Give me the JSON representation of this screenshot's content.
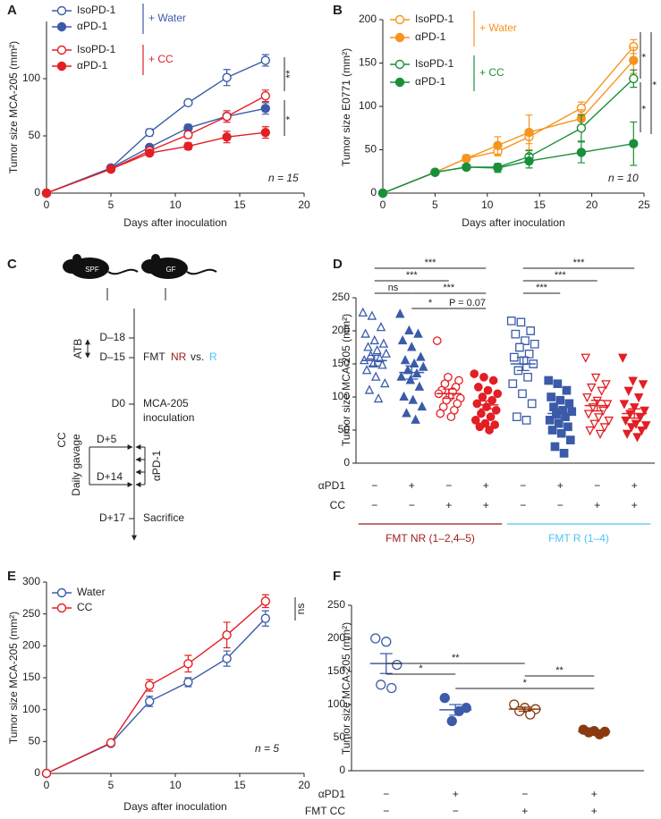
{
  "chart_data": [
    {
      "panel": "A",
      "type": "line",
      "x_label": "Days after inoculation",
      "y_label": "Tumor size MCA-205 (mm²)",
      "x": [
        0,
        5,
        8,
        11,
        14,
        17
      ],
      "xlim": [
        0,
        20
      ],
      "xticks": [
        0,
        5,
        10,
        15,
        20
      ],
      "ylim": [
        0,
        150
      ],
      "yticks": [
        0,
        50,
        100
      ],
      "series": [
        {
          "name": "IsoPD-1",
          "color": "#3b5ba9",
          "marker": "open",
          "values": [
            0,
            22,
            53,
            79,
            101,
            116
          ],
          "errors": [
            0,
            1,
            3,
            2,
            7,
            5
          ]
        },
        {
          "name": "αPD-1",
          "color": "#3b5ba9",
          "marker": "filled",
          "values": [
            0,
            22,
            40,
            57,
            67,
            74
          ],
          "errors": [
            0,
            1,
            2,
            3,
            3,
            5
          ]
        },
        {
          "name": "IsoPD-1",
          "color": "#e31e24",
          "marker": "open",
          "values": [
            0,
            21,
            37,
            51,
            67,
            85
          ],
          "errors": [
            0,
            1,
            2,
            3,
            5,
            5
          ]
        },
        {
          "name": "αPD-1",
          "color": "#e31e24",
          "marker": "filled",
          "values": [
            0,
            21,
            35,
            41,
            49,
            53
          ],
          "errors": [
            0,
            1,
            2,
            3,
            5,
            5
          ]
        }
      ],
      "legend_groups": [
        {
          "label": "+ Water",
          "color": "#3b5ba9"
        },
        {
          "label": "+ CC",
          "color": "#e31e24"
        }
      ],
      "significance": [
        "**",
        "*"
      ],
      "annotation": "n = 15"
    },
    {
      "panel": "B",
      "type": "line",
      "x_label": "Days after inoculation",
      "y_label": "Tumor size E0771 (mm²)",
      "x": [
        0,
        5,
        8,
        11,
        14,
        19,
        24
      ],
      "xlim": [
        0,
        25
      ],
      "xticks": [
        0,
        5,
        10,
        15,
        20,
        25
      ],
      "ylim": [
        0,
        200
      ],
      "yticks": [
        0,
        50,
        100,
        150,
        200
      ],
      "series": [
        {
          "name": "IsoPD-1",
          "color": "#f7941d",
          "marker": "open",
          "values": [
            0,
            24,
            40,
            48,
            65,
            98,
            169
          ],
          "errors": [
            0,
            1,
            3,
            5,
            8,
            7,
            8
          ]
        },
        {
          "name": "αPD-1",
          "color": "#f7941d",
          "marker": "filled",
          "values": [
            0,
            24,
            40,
            55,
            70,
            86,
            153
          ],
          "errors": [
            0,
            1,
            4,
            10,
            20,
            10,
            15
          ]
        },
        {
          "name": "IsoPD-1",
          "color": "#1a8f3a",
          "marker": "open",
          "values": [
            0,
            24,
            30,
            30,
            42,
            75,
            132
          ],
          "errors": [
            0,
            1,
            3,
            4,
            7,
            15,
            10
          ]
        },
        {
          "name": "αPD-1",
          "color": "#1a8f3a",
          "marker": "filled",
          "values": [
            0,
            24,
            30,
            29,
            37,
            47,
            57
          ],
          "errors": [
            0,
            1,
            3,
            5,
            8,
            12,
            25
          ]
        }
      ],
      "legend_groups": [
        {
          "label": "+ Water",
          "color": "#f7941d"
        },
        {
          "label": "+ CC",
          "color": "#1a8f3a"
        }
      ],
      "significance": [
        "*",
        "*",
        "*"
      ],
      "annotation": "n = 10"
    },
    {
      "panel": "D",
      "type": "strip",
      "y_label": "Tumor size MCA-205 (mm²)",
      "ylim": [
        0,
        250
      ],
      "yticks": [
        0,
        50,
        100,
        150,
        200,
        250
      ],
      "groups": [
        {
          "color": "#3b5ba9",
          "marker": "triangle",
          "style": "open",
          "values": [
            227,
            222,
            205,
            195,
            185,
            180,
            175,
            170,
            165,
            162,
            158,
            155,
            150,
            148,
            140,
            130,
            120,
            110,
            97
          ],
          "mean": 155,
          "sem": 8
        },
        {
          "color": "#3b5ba9",
          "marker": "triangle",
          "style": "filled",
          "values": [
            225,
            200,
            195,
            185,
            175,
            160,
            155,
            150,
            145,
            140,
            135,
            130,
            125,
            115,
            100,
            95,
            85,
            75,
            65
          ],
          "mean": 137,
          "sem": 10
        },
        {
          "color": "#e31e24",
          "marker": "circle",
          "style": "open",
          "values": [
            185,
            130,
            125,
            120,
            115,
            110,
            108,
            105,
            100,
            98,
            95,
            90,
            85,
            80,
            75,
            70
          ],
          "mean": 105,
          "sem": 7
        },
        {
          "color": "#e31e24",
          "marker": "circle",
          "style": "filled",
          "values": [
            135,
            130,
            125,
            115,
            110,
            105,
            100,
            95,
            90,
            85,
            80,
            75,
            70,
            65,
            60,
            58,
            55,
            50
          ],
          "mean": 88,
          "sem": 6
        },
        {
          "color": "#3b5ba9",
          "marker": "square",
          "style": "open",
          "values": [
            215,
            213,
            200,
            195,
            185,
            180,
            175,
            165,
            160,
            155,
            150,
            140,
            130,
            120,
            105,
            90,
            70,
            65
          ],
          "mean": 150,
          "sem": 10
        },
        {
          "color": "#3b5ba9",
          "marker": "square",
          "style": "filled",
          "values": [
            125,
            120,
            110,
            100,
            95,
            90,
            85,
            80,
            78,
            75,
            70,
            65,
            60,
            55,
            50,
            45,
            35,
            25,
            15
          ],
          "mean": 75,
          "sem": 7
        },
        {
          "color": "#e31e24",
          "marker": "triangle-down",
          "style": "open",
          "values": [
            160,
            130,
            120,
            115,
            110,
            100,
            95,
            90,
            85,
            80,
            75,
            70,
            65,
            60,
            55,
            50,
            45
          ],
          "mean": 87,
          "sem": 8
        },
        {
          "color": "#e31e24",
          "marker": "triangle-down",
          "style": "filled",
          "values": [
            160,
            125,
            120,
            110,
            100,
            90,
            85,
            80,
            75,
            70,
            65,
            60,
            58,
            55,
            50,
            45,
            40
          ],
          "mean": 75,
          "sem": 7
        }
      ],
      "rows": [
        {
          "label": "αPD1",
          "signs": [
            "−",
            "+",
            "−",
            "+",
            "−",
            "+",
            "−",
            "+"
          ]
        },
        {
          "label": "CC",
          "signs": [
            "−",
            "−",
            "+",
            "+",
            "−",
            "−",
            "+",
            "+"
          ]
        }
      ],
      "comparisons": [
        "***",
        "***",
        "ns",
        "***",
        "*",
        "P = 0.07",
        "***",
        "***",
        "***"
      ],
      "cohorts": [
        {
          "label": "FMT NR (1–2,4–5)",
          "color": "#9b1c1c"
        },
        {
          "label": "FMT R (1–4)",
          "color": "#4fc3f7"
        }
      ]
    },
    {
      "panel": "E",
      "type": "line",
      "x_label": "Days after inoculation",
      "y_label": "Tumor size MCA-205 (mm²)",
      "x": [
        0,
        5,
        8,
        11,
        14,
        17
      ],
      "xlim": [
        0,
        20
      ],
      "xticks": [
        0,
        5,
        10,
        15,
        20
      ],
      "ylim": [
        0,
        300
      ],
      "yticks": [
        0,
        50,
        100,
        150,
        200,
        250,
        300
      ],
      "series": [
        {
          "name": "Water",
          "color": "#3b5ba9",
          "marker": "open",
          "values": [
            0,
            47,
            113,
            143,
            180,
            243
          ],
          "errors": [
            0,
            3,
            8,
            7,
            12,
            12
          ]
        },
        {
          "name": "CC",
          "color": "#e31e24",
          "marker": "open",
          "values": [
            0,
            48,
            138,
            172,
            217,
            270
          ],
          "errors": [
            0,
            3,
            9,
            13,
            20,
            10
          ]
        }
      ],
      "legend_groups": [],
      "significance": [
        "ns"
      ],
      "annotation": "n = 5"
    },
    {
      "panel": "F",
      "type": "strip",
      "y_label": "Tumor size MCA-205 (mm²)",
      "ylim": [
        0,
        250
      ],
      "yticks": [
        0,
        50,
        100,
        150,
        200,
        250
      ],
      "groups": [
        {
          "color": "#3b5ba9",
          "marker": "circle",
          "style": "open",
          "values": [
            200,
            195,
            160,
            130,
            125
          ],
          "mean": 162,
          "sem": 15
        },
        {
          "color": "#3b5ba9",
          "marker": "circle",
          "style": "filled",
          "values": [
            110,
            95,
            90,
            75
          ],
          "mean": 92,
          "sem": 8
        },
        {
          "color": "#8b3a10",
          "marker": "circle",
          "style": "open",
          "values": [
            100,
            95,
            93,
            90,
            85
          ],
          "mean": 93,
          "sem": 3
        },
        {
          "color": "#8b3a10",
          "marker": "circle",
          "style": "filled",
          "values": [
            62,
            60,
            59,
            58,
            55
          ],
          "mean": 59,
          "sem": 2
        }
      ],
      "rows": [
        {
          "label": "αPD1",
          "signs": [
            "−",
            "+",
            "−",
            "+"
          ]
        },
        {
          "label": "FMT CC",
          "signs": [
            "−",
            "−",
            "+",
            "+"
          ]
        }
      ],
      "comparisons": [
        "**",
        "*",
        "**",
        "*"
      ],
      "cohorts": []
    }
  ],
  "diagram": {
    "panel": "C",
    "mouse_spf": "SPF",
    "mouse_gf": "GF",
    "atb": "ATB",
    "d18": "D–18",
    "d15": "D–15",
    "fmt": "FMT",
    "nr": "NR",
    "vs": "vs.",
    "r": "R",
    "d0": "D0",
    "mca": "MCA-205",
    "inoculation": "inoculation",
    "cc": "CC",
    "gavage": "Daily gavage",
    "d5": "D+5",
    "d14": "D+14",
    "apd1": "αPD-1",
    "d17": "D+17",
    "sacrifice": "Sacrifice"
  }
}
